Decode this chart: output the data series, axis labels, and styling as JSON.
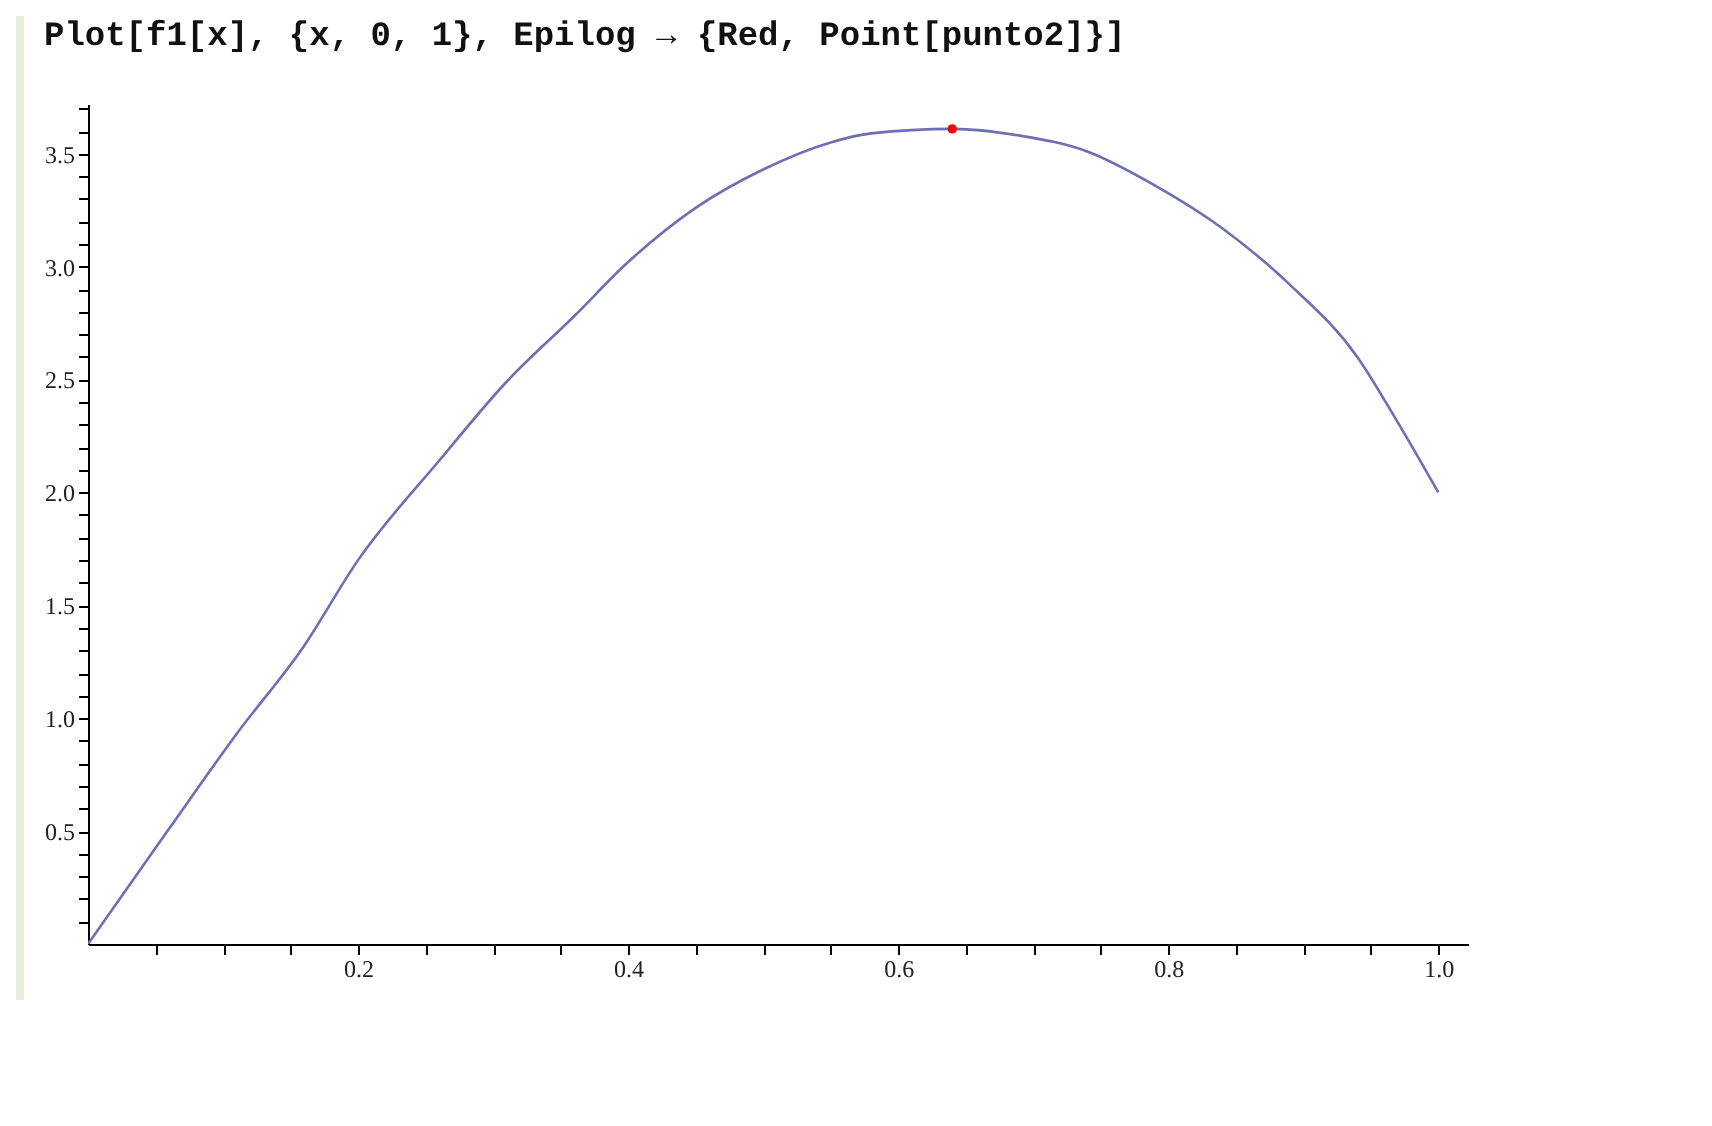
{
  "chart_data": {
    "type": "line",
    "title": "Plot[f1[x], {x, 0, 1}, Epilog → {Red, Point[punto2]}]",
    "xlim": [
      0,
      1.022
    ],
    "ylim": [
      0,
      3.72
    ],
    "xticks": [
      {
        "value": 0.05,
        "label": null
      },
      {
        "value": 0.1,
        "label": null
      },
      {
        "value": 0.15,
        "label": null
      },
      0.2,
      {
        "value": 0.25,
        "label": null
      },
      {
        "value": 0.3,
        "label": null
      },
      {
        "value": 0.35,
        "label": null
      },
      0.4,
      {
        "value": 0.45,
        "label": null
      },
      {
        "value": 0.5,
        "label": null
      },
      {
        "value": 0.55,
        "label": null
      },
      0.6,
      {
        "value": 0.65,
        "label": null
      },
      {
        "value": 0.7,
        "label": null
      },
      {
        "value": 0.75,
        "label": null
      },
      0.8,
      {
        "value": 0.85,
        "label": null
      },
      {
        "value": 0.9,
        "label": null
      },
      {
        "value": 0.95,
        "label": null
      },
      {
        "value": 1,
        "label": "1.0"
      }
    ],
    "yticks": [
      {
        "value": 0.1,
        "label": null
      },
      {
        "value": 0.2,
        "label": null
      },
      {
        "value": 0.3,
        "label": null
      },
      {
        "value": 0.4,
        "label": null
      },
      0.5,
      {
        "value": 0.6,
        "label": null
      },
      {
        "value": 0.7,
        "label": null
      },
      {
        "value": 0.8,
        "label": null
      },
      {
        "value": 0.9,
        "label": null
      },
      {
        "value": 1,
        "label": "1.0"
      },
      {
        "value": 1.1,
        "label": null
      },
      {
        "value": 1.2,
        "label": null
      },
      {
        "value": 1.3,
        "label": null
      },
      {
        "value": 1.4,
        "label": null
      },
      1.5,
      {
        "value": 1.6,
        "label": null
      },
      {
        "value": 1.7,
        "label": null
      },
      {
        "value": 1.8,
        "label": null
      },
      {
        "value": 1.9,
        "label": null
      },
      {
        "value": 2,
        "label": "2.0"
      },
      {
        "value": 2.1,
        "label": null
      },
      {
        "value": 2.2,
        "label": null
      },
      {
        "value": 2.3,
        "label": null
      },
      {
        "value": 2.4,
        "label": null
      },
      2.5,
      {
        "value": 2.6,
        "label": null
      },
      {
        "value": 2.7,
        "label": null
      },
      {
        "value": 2.8,
        "label": null
      },
      {
        "value": 2.9,
        "label": null
      },
      {
        "value": 3,
        "label": "3.0"
      },
      {
        "value": 3.1,
        "label": null
      },
      {
        "value": 3.2,
        "label": null
      },
      {
        "value": 3.3,
        "label": null
      },
      {
        "value": 3.4,
        "label": null
      },
      3.5,
      {
        "value": 3.6,
        "label": null
      },
      {
        "value": 3.7,
        "label": null
      }
    ],
    "grid": false,
    "series": [
      {
        "color": "#6e6eb4",
        "x": [
          0,
          0.06,
          0.11,
          0.16,
          0.2,
          0.26,
          0.31,
          0.36,
          0.4,
          0.45,
          0.5,
          0.55,
          0.58,
          0.64,
          0.69,
          0.74,
          0.79,
          0.84,
          0.89,
          0.94,
          0.97,
          1
        ],
        "values": [
          0,
          0.51,
          0.93,
          1.32,
          1.7,
          2.14,
          2.49,
          2.78,
          3.02,
          3.26,
          3.43,
          3.55,
          3.59,
          3.61,
          3.58,
          3.51,
          3.36,
          3.17,
          2.92,
          2.6,
          2.31,
          2.0
        ]
      },
      {
        "type": "scatter",
        "color": "#ff0000",
        "x": [
          0.64
        ],
        "values": [
          3.61
        ]
      }
    ]
  }
}
